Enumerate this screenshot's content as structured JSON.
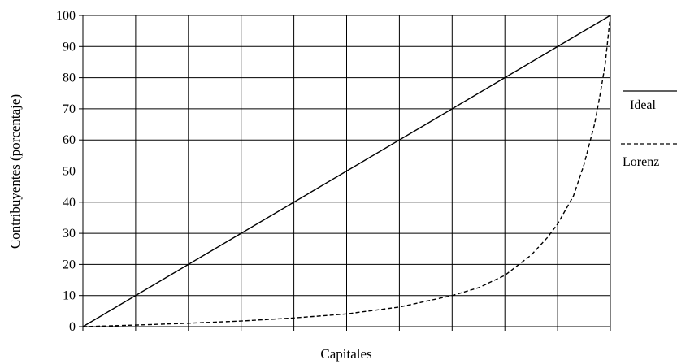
{
  "chart_data": {
    "type": "line",
    "xlabel": "Capitales",
    "ylabel": "Contribuyentes (porcentaje)",
    "xlim": [
      0,
      100
    ],
    "ylim": [
      0,
      100
    ],
    "yticks": [
      "0",
      "10",
      "20",
      "30",
      "40",
      "50",
      "60",
      "70",
      "80",
      "90",
      "100"
    ],
    "grid": true,
    "legend_position": "right",
    "series": [
      {
        "name": "Ideal",
        "style": "solid",
        "color": "#000000",
        "x": [
          0,
          100
        ],
        "y": [
          0,
          100
        ]
      },
      {
        "name": "Lorenz",
        "style": "dashed",
        "color": "#000000",
        "x": [
          0,
          10,
          20,
          30,
          40,
          50,
          60,
          70,
          75,
          80,
          85,
          88,
          90,
          93,
          95,
          97,
          98,
          99,
          100
        ],
        "y": [
          0,
          0.5,
          1.1,
          1.8,
          2.8,
          4.1,
          6.3,
          10.0,
          12.5,
          16.5,
          23.0,
          28.5,
          33.0,
          42.0,
          52.0,
          65.0,
          74.0,
          84.0,
          100.0
        ]
      }
    ]
  }
}
